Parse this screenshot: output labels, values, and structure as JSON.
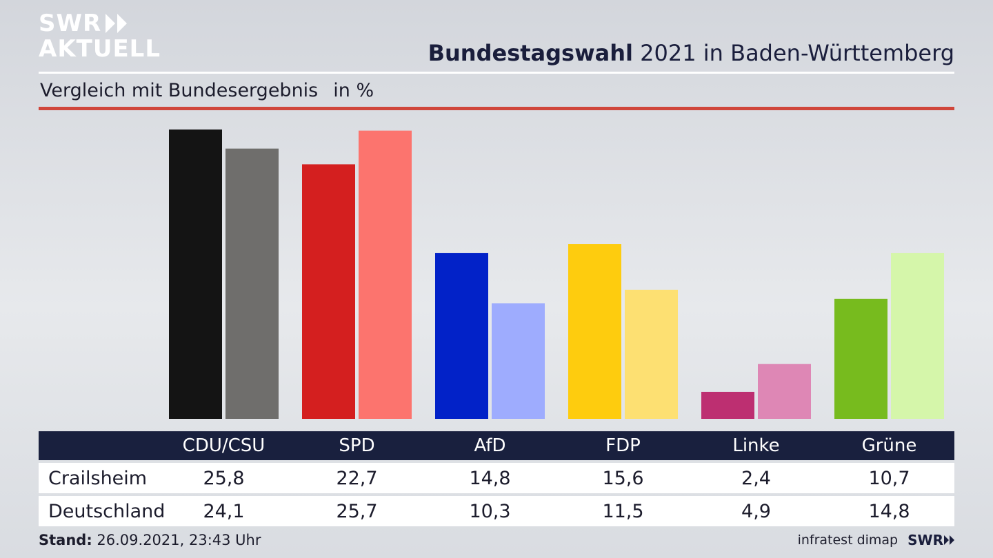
{
  "logo": {
    "line1": "SWR",
    "line2": "AKTUELL"
  },
  "header": {
    "title_bold": "Bundestagswahl",
    "title_rest": " 2021 in Baden-Württemberg"
  },
  "subtitle": {
    "text": "Vergleich mit Bundesergebnis",
    "unit": "in %"
  },
  "chart_data": {
    "type": "bar",
    "categories": [
      "CDU/CSU",
      "SPD",
      "AfD",
      "FDP",
      "Linke",
      "Grüne"
    ],
    "series": [
      {
        "name": "Crailsheim",
        "values": [
          25.8,
          22.7,
          14.8,
          15.6,
          2.4,
          10.7
        ],
        "colors": [
          "#141414",
          "#d41f1f",
          "#0222c8",
          "#fecc0e",
          "#bd2f71",
          "#77bb1e"
        ]
      },
      {
        "name": "Deutschland",
        "values": [
          24.1,
          25.7,
          10.3,
          11.5,
          4.9,
          14.8
        ],
        "colors": [
          "#6f6e6c",
          "#fc746e",
          "#9eacfe",
          "#fde072",
          "#de87b5",
          "#d5f6aa"
        ]
      }
    ],
    "ylim": [
      0,
      25.8
    ],
    "grid": false,
    "legend": "table-below"
  },
  "footer": {
    "stand_label": "Stand:",
    "stand_value": " 26.09.2021, 23:43 Uhr",
    "source": "infratest dimap",
    "brand": "SWR"
  }
}
